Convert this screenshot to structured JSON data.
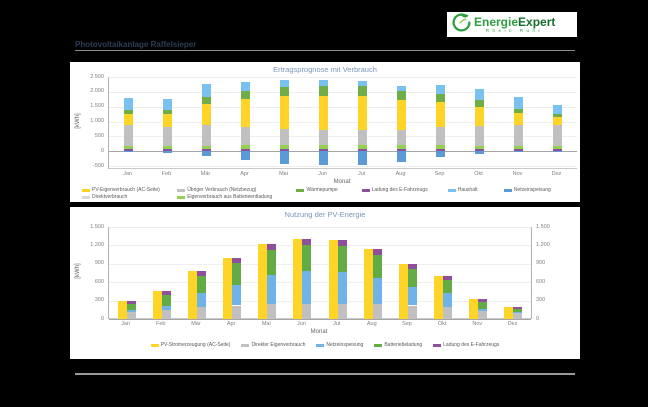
{
  "logo": {
    "brand_part1": "Energie",
    "brand_part2": "Expert",
    "subtitle": "Rhein Ruhr",
    "icon": "green-leaf-swoosh-icon",
    "brand_color": "#2f9e41"
  },
  "header": {
    "title": "Photovoltaikanlage Raffelsieper"
  },
  "chart_data": [
    {
      "type": "bar",
      "variant": "stacked-with-negative",
      "title": "Ertragsprognose mit Verbrauch",
      "xlabel": "Monat",
      "ylabel": "[kWh]",
      "categories": [
        "Jan",
        "Feb",
        "Mär",
        "Apr",
        "Mai",
        "Jun",
        "Jul",
        "Aug",
        "Sep",
        "Okt",
        "Nov",
        "Dez"
      ],
      "ylim": [
        -600,
        2500
      ],
      "y_ticks": [
        "2.500",
        "2.000",
        "1.500",
        "1.000",
        "500",
        "0",
        "-500"
      ],
      "grid": true,
      "legend_position": "bottom",
      "series": [
        {
          "name": "Ladung des E-Fahrzeugs",
          "color": "#8f4f9f",
          "values": [
            60,
            60,
            60,
            60,
            60,
            60,
            60,
            60,
            60,
            60,
            60,
            60
          ]
        },
        {
          "name": "Eigenverbrauch aus Batterieentladung",
          "color": "#92d050",
          "values": [
            120,
            120,
            130,
            140,
            150,
            150,
            150,
            140,
            140,
            130,
            120,
            110
          ]
        },
        {
          "name": "Übriger Verbrauch (Netzbezug)",
          "color": "#c0c0c0",
          "values": [
            700,
            640,
            700,
            600,
            550,
            500,
            500,
            520,
            600,
            650,
            700,
            720
          ]
        },
        {
          "name": "PV-Eigenverbrauch (AC-Seite)",
          "color": "#ffd428",
          "values": [
            380,
            420,
            700,
            950,
            1100,
            1150,
            1150,
            1000,
            850,
            650,
            400,
            250
          ]
        },
        {
          "name": "Wärmepumpe",
          "color": "#70ad47",
          "values": [
            140,
            160,
            250,
            280,
            300,
            320,
            320,
            300,
            280,
            250,
            150,
            120
          ]
        },
        {
          "name": "Haushalt",
          "color": "#79c1f1",
          "values": [
            400,
            350,
            420,
            300,
            250,
            220,
            200,
            180,
            300,
            350,
            380,
            300
          ]
        },
        {
          "name": "Netzeinspeisung",
          "color": "#5b9bd5",
          "values": [
            -40,
            -70,
            -160,
            -300,
            -420,
            -480,
            -450,
            -380,
            -200,
            -90,
            -40,
            -20
          ]
        }
      ],
      "legend": [
        {
          "label": "PV-Eigenverbrauch (AC-Seite)",
          "color": "#ffd428"
        },
        {
          "label": "Übriger Verbrauch (Netzbezug)",
          "color": "#c0c0c0"
        },
        {
          "label": "Wärmepumpe",
          "color": "#70ad47"
        },
        {
          "label": "Ladung des E-Fahrzeugs",
          "color": "#8f4f9f"
        },
        {
          "label": "Haushalt",
          "color": "#79c1f1"
        },
        {
          "label": "Netzeinspeisung",
          "color": "#5b9bd5"
        },
        {
          "label": "Direktverbrauch",
          "color": "#d9d9d9"
        },
        {
          "label": "Eigenverbrauch aus Batterieentladung",
          "color": "#92d050"
        }
      ]
    },
    {
      "type": "bar",
      "variant": "grouped-production-vs-usage-stack",
      "title": "Nutzung der PV-Energie",
      "xlabel": "Monat",
      "ylabel": "[kWh]",
      "categories": [
        "Jan",
        "Feb",
        "Mär",
        "Apr",
        "Mai",
        "Jun",
        "Jul",
        "Aug",
        "Sep",
        "Okt",
        "Nov",
        "Dez"
      ],
      "ylim": [
        0,
        1500
      ],
      "y_ticks": [
        "1.500",
        "1.200",
        "900",
        "600",
        "300",
        "0"
      ],
      "right_axis": true,
      "grid": true,
      "legend_position": "bottom",
      "production": {
        "name": "PV-Stromerzeugung (AC-Seite)",
        "color": "#ffd428",
        "values": [
          300,
          450,
          780,
          1000,
          1230,
          1300,
          1290,
          1140,
          900,
          700,
          330,
          200
        ]
      },
      "usage_series": [
        {
          "name": "Direkter Eigenverbrauch",
          "color": "#c0c0c0",
          "values": [
            120,
            150,
            200,
            220,
            240,
            250,
            250,
            240,
            220,
            200,
            130,
            100
          ]
        },
        {
          "name": "Netzeinspeisung",
          "color": "#6fb3e8",
          "values": [
            20,
            60,
            220,
            340,
            480,
            530,
            520,
            430,
            300,
            220,
            40,
            10
          ]
        },
        {
          "name": "Batteriebeladung",
          "color": "#63ab45",
          "values": [
            110,
            180,
            280,
            350,
            410,
            420,
            420,
            380,
            300,
            220,
            110,
            60
          ]
        },
        {
          "name": "Ladung des E-Fahrzeugs",
          "color": "#8f4f9f",
          "values": [
            50,
            60,
            80,
            90,
            100,
            100,
            100,
            90,
            80,
            60,
            50,
            30
          ]
        }
      ],
      "legend": [
        {
          "label": "PV-Stromerzeugung (AC-Seite)",
          "color": "#ffd428"
        },
        {
          "label": "Direkter Eigenverbrauch",
          "color": "#c0c0c0"
        },
        {
          "label": "Netzeinspeisung",
          "color": "#6fb3e8"
        },
        {
          "label": "Batteriebeladung",
          "color": "#63ab45"
        },
        {
          "label": "Ladung des E-Fahrzeugs",
          "color": "#8f4f9f"
        }
      ]
    }
  ]
}
